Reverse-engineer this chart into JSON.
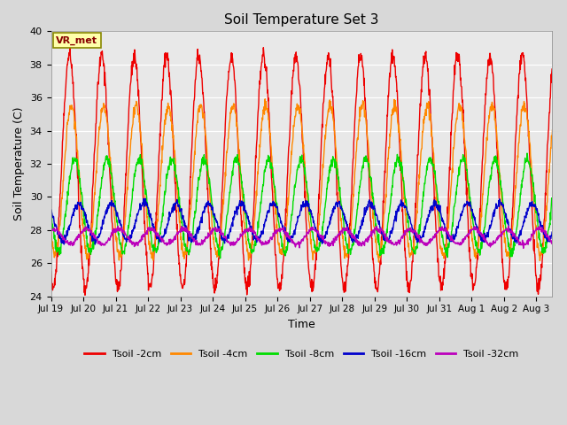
{
  "title": "Soil Temperature Set 3",
  "xlabel": "Time",
  "ylabel": "Soil Temperature (C)",
  "ylim": [
    24,
    40
  ],
  "yticks": [
    24,
    26,
    28,
    30,
    32,
    34,
    36,
    38,
    40
  ],
  "fig_bg_color": "#d8d8d8",
  "plot_bg_color": "#e8e8e8",
  "legend_bg": "#ffffff",
  "annotation_text": "VR_met",
  "annotation_bg": "#ffffaa",
  "annotation_border": "#888800",
  "colors": {
    "Tsoil -2cm": "#ee0000",
    "Tsoil -4cm": "#ff8800",
    "Tsoil -8cm": "#00dd00",
    "Tsoil -16cm": "#0000cc",
    "Tsoil -32cm": "#bb00bb"
  },
  "x_tick_labels": [
    "Jul 19",
    "Jul 20",
    "Jul 21",
    "Jul 22",
    "Jul 23",
    "Jul 24",
    "Jul 25",
    "Jul 26",
    "Jul 27",
    "Jul 28",
    "Jul 29",
    "Jul 30",
    "Jul 31",
    "Aug 1",
    "Aug 2",
    "Aug 3"
  ],
  "n_days": 15.5,
  "points_per_day": 96,
  "amp2": 7.0,
  "mean2": 31.5,
  "amp4": 4.5,
  "mean4": 31.0,
  "amp8": 2.8,
  "mean8": 29.5,
  "amp16": 1.1,
  "mean16": 28.5,
  "amp32": 0.45,
  "mean32": 27.6
}
